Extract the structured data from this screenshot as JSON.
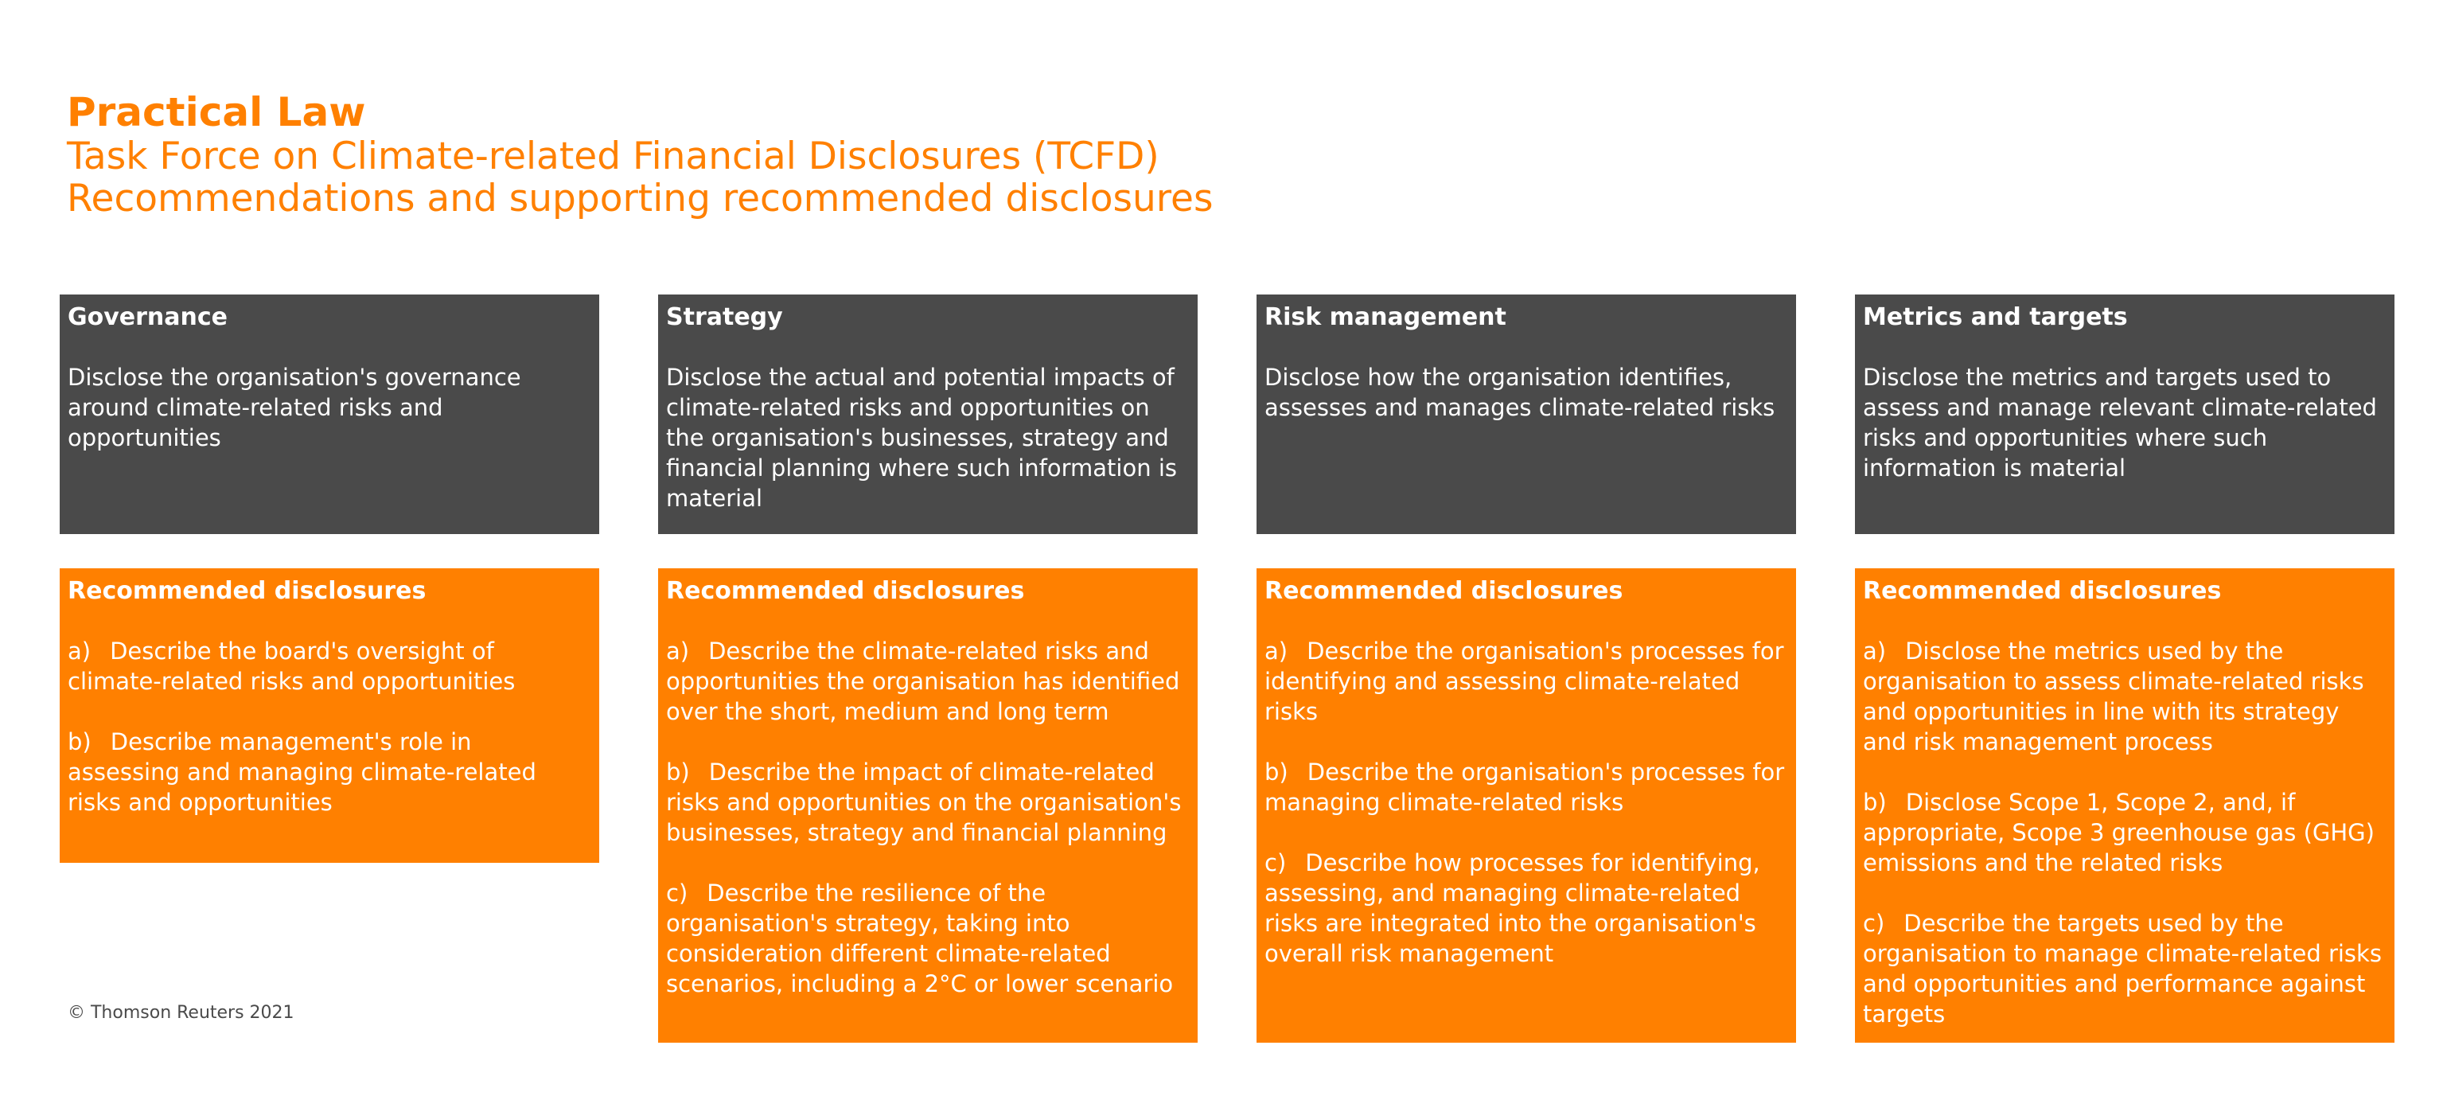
{
  "header": {
    "brand": "Practical Law",
    "line1": "Task Force on Climate-related Financial Disclosures (TCFD)",
    "line2": "Recommendations and supporting recommended disclosures"
  },
  "columns": [
    {
      "title": "Governance",
      "description": "Disclose the organisation's governance around climate-related risks and opportunities",
      "rec_title": "Recommended disclosures",
      "items": [
        {
          "letter": "a)",
          "text": "Describe the board's oversight of climate-related risks and opportunities"
        },
        {
          "letter": "b)",
          "text": "Describe management's role in assessing and managing climate-related risks and opportunities"
        }
      ]
    },
    {
      "title": "Strategy",
      "description": "Disclose the actual and potential impacts of climate-related risks and opportunities on the organisation's businesses, strategy and financial planning where such information is material",
      "rec_title": "Recommended disclosures",
      "items": [
        {
          "letter": "a)",
          "text": "Describe the climate-related risks and opportunities the organisation has identified over the short, medium and long term"
        },
        {
          "letter": "b)",
          "text": "Describe the impact of climate-related risks and opportunities on the organisation's businesses, strategy and financial planning"
        },
        {
          "letter": "c)",
          "text": "Describe the resilience of the organisation's strategy, taking into consideration different climate-related scenarios, including a 2°C or lower scenario"
        }
      ]
    },
    {
      "title": "Risk management",
      "description": "Disclose how the organisation identifies, assesses and manages climate-related risks",
      "rec_title": "Recommended disclosures",
      "items": [
        {
          "letter": "a)",
          "text": "Describe the organisation's processes for identifying and assessing climate-related risks"
        },
        {
          "letter": "b)",
          "text": "Describe the organisation's processes for managing climate-related risks"
        },
        {
          "letter": "c)",
          "text": "Describe how processes for identifying, assessing, and managing climate-related risks are integrated into the organisation's overall risk management"
        }
      ]
    },
    {
      "title": "Metrics and targets",
      "description": "Disclose the metrics and targets used to assess and manage relevant climate-related risks and opportunities where such information is material",
      "rec_title": "Recommended disclosures",
      "items": [
        {
          "letter": "a)",
          "text": "Disclose the metrics used by the organisation to assess climate-related risks and opportunities in line with its strategy and risk management process"
        },
        {
          "letter": "b)",
          "text": "Disclose Scope 1, Scope 2, and, if appropriate, Scope 3 greenhouse gas (GHG) emissions and the related risks"
        },
        {
          "letter": "c)",
          "text": "Describe the targets used by the organisation to manage climate-related risks and opportunities and performance against targets"
        }
      ]
    }
  ],
  "footer": {
    "copyright": "© Thomson Reuters 2021"
  },
  "colors": {
    "accent": "#ff8000",
    "dark": "#4a4a4a"
  }
}
